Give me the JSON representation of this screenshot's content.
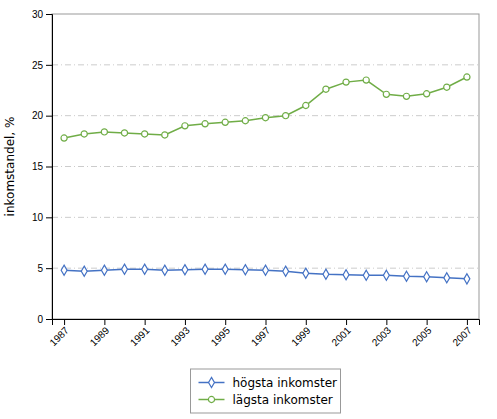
{
  "chart_data": {
    "type": "line",
    "ylabel": "inkomstandel, %",
    "x": [
      1987,
      1988,
      1989,
      1990,
      1991,
      1992,
      1993,
      1994,
      1995,
      1996,
      1997,
      1998,
      1999,
      2000,
      2001,
      2002,
      2003,
      2004,
      2005,
      2006,
      2007
    ],
    "series": [
      {
        "name": "högsta inkomster",
        "color": "#4472C4",
        "marker": "diamond",
        "values": [
          4.8,
          4.7,
          4.8,
          4.9,
          4.9,
          4.8,
          4.85,
          4.9,
          4.9,
          4.85,
          4.8,
          4.7,
          4.5,
          4.4,
          4.35,
          4.3,
          4.3,
          4.2,
          4.15,
          4.05,
          3.95
        ]
      },
      {
        "name": "lägsta inkomster",
        "color": "#70AD47",
        "marker": "circle",
        "values": [
          17.8,
          18.2,
          18.4,
          18.3,
          18.2,
          18.1,
          19.0,
          19.2,
          19.35,
          19.5,
          19.8,
          20.0,
          21.0,
          22.6,
          23.3,
          23.5,
          22.1,
          21.9,
          22.15,
          22.8,
          23.8
        ]
      }
    ],
    "xlim": [
      1986.4,
      2007.6
    ],
    "xticks": [
      1987,
      1989,
      1991,
      1993,
      1995,
      1997,
      1999,
      2001,
      2003,
      2005,
      2007
    ],
    "ylim": [
      0,
      30
    ],
    "yticks": [
      0,
      5,
      10,
      15,
      20,
      25,
      30
    ],
    "grid": true,
    "legend": "bottom"
  }
}
